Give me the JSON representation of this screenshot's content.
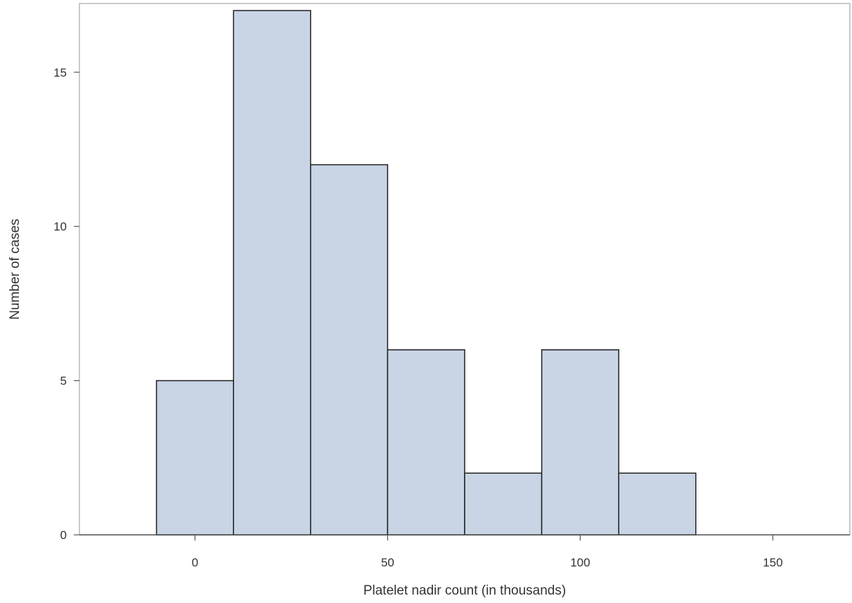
{
  "chart_data": {
    "type": "bar",
    "subtype": "histogram",
    "bin_width": 20,
    "bins": [
      {
        "start": -10,
        "end": 10,
        "count": 5
      },
      {
        "start": 10,
        "end": 30,
        "count": 17
      },
      {
        "start": 30,
        "end": 50,
        "count": 12
      },
      {
        "start": 50,
        "end": 70,
        "count": 6
      },
      {
        "start": 70,
        "end": 90,
        "count": 2
      },
      {
        "start": 90,
        "end": 110,
        "count": 6
      },
      {
        "start": 110,
        "end": 130,
        "count": 2
      }
    ],
    "xlabel": "Platelet nadir count (in thousands)",
    "ylabel": "Number of cases",
    "xlim": [
      -30,
      170
    ],
    "ylim": [
      0,
      17
    ],
    "x_ticks": [
      0,
      50,
      100,
      150
    ],
    "y_ticks": [
      0,
      5,
      10,
      15
    ],
    "grid": false,
    "colors": {
      "bar_fill": "#c9d4e5",
      "bar_stroke": "#1f1f1f",
      "frame": "#a8a8a8",
      "text": "#333333"
    }
  }
}
